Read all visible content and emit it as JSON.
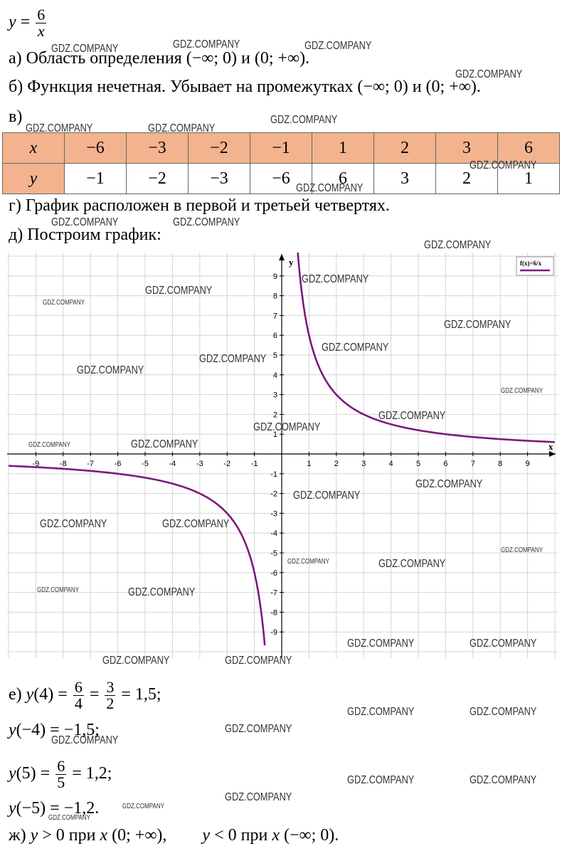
{
  "formula": {
    "y": "y",
    "eq": "=",
    "num": "6",
    "den": "x"
  },
  "a": {
    "text": "а) Область определения (−∞; 0) и (0;  +∞)."
  },
  "b": {
    "text": "б) Функция нечетная. Убывает на промежутках (−∞; 0) и (0;  +∞)."
  },
  "v": {
    "label": "в)"
  },
  "table": {
    "x_header": "x",
    "y_header": "y",
    "x": [
      "−6",
      "−3",
      "−2",
      "−1",
      "1",
      "2",
      "3",
      "6"
    ],
    "y": [
      "−1",
      "−2",
      "−3",
      "−6",
      "6",
      "3",
      "2",
      "1"
    ]
  },
  "g": {
    "text": "г) График расположен в первой и третьей четвертях."
  },
  "d": {
    "text": "д) Построим график:"
  },
  "chart_data": {
    "type": "line",
    "legend": "f(x)=6/x",
    "legend_position": "top-right",
    "xlabel": "x",
    "ylabel": "y",
    "xlim": [
      -10,
      10
    ],
    "ylim": [
      -10,
      10
    ],
    "grid": true,
    "x_ticks": [
      "-9",
      "-8",
      "-7",
      "-6",
      "-5",
      "-4",
      "-3",
      "-2",
      "-1",
      "1",
      "2",
      "3",
      "4",
      "5",
      "6",
      "7",
      "8",
      "9"
    ],
    "y_ticks": [
      "9",
      "8",
      "7",
      "6",
      "5",
      "4",
      "3",
      "2",
      "1",
      "-1",
      "-2",
      "-3",
      "-4",
      "-5",
      "-6",
      "-7",
      "-8",
      "-9"
    ],
    "series": [
      {
        "name": "f(x)=6/x",
        "color": "#7b1a7e",
        "x": [
          -10,
          -8,
          -6,
          -5,
          -4,
          -3,
          -2,
          -1.5,
          -1,
          -0.75,
          -0.62
        ],
        "y": [
          -0.6,
          -0.75,
          -1,
          -1.2,
          -1.5,
          -2,
          -3,
          -4,
          -6,
          -8,
          -9.7
        ]
      },
      {
        "name": "f(x)=6/x",
        "color": "#7b1a7e",
        "x": [
          0.55,
          0.62,
          0.75,
          1,
          1.5,
          2,
          3,
          4,
          5,
          6,
          8,
          10
        ],
        "y": [
          10.9,
          9.7,
          8,
          6,
          4,
          3,
          2,
          1.5,
          1.2,
          1,
          0.75,
          0.6
        ]
      }
    ]
  },
  "e": {
    "l1": {
      "pre": "е) ",
      "fn": "y",
      "arg": "(4) = ",
      "n1": "6",
      "d1": "4",
      "eq2": " = ",
      "n2": "3",
      "d2": "2",
      "tail": " = 1,5;"
    },
    "l2": {
      "fn": "y",
      "rest": "(−4) = −1,5;"
    },
    "l3": {
      "fn": "y",
      "arg": "(5) = ",
      "n": "6",
      "d": "5",
      "tail": " = 1,2;"
    },
    "l4": {
      "fn": "y",
      "rest": "(−5) = −1,2."
    }
  },
  "zh": {
    "pre": "ж) ",
    "y1": "y",
    "m1": " > 0 при ",
    "x1": "x",
    "r1": " (0; +∞),",
    "y2": "y",
    "m2": " < 0 при ",
    "x2": "x",
    "r2": " (−∞; 0)."
  },
  "watermark": "GDZ.COMPANY"
}
